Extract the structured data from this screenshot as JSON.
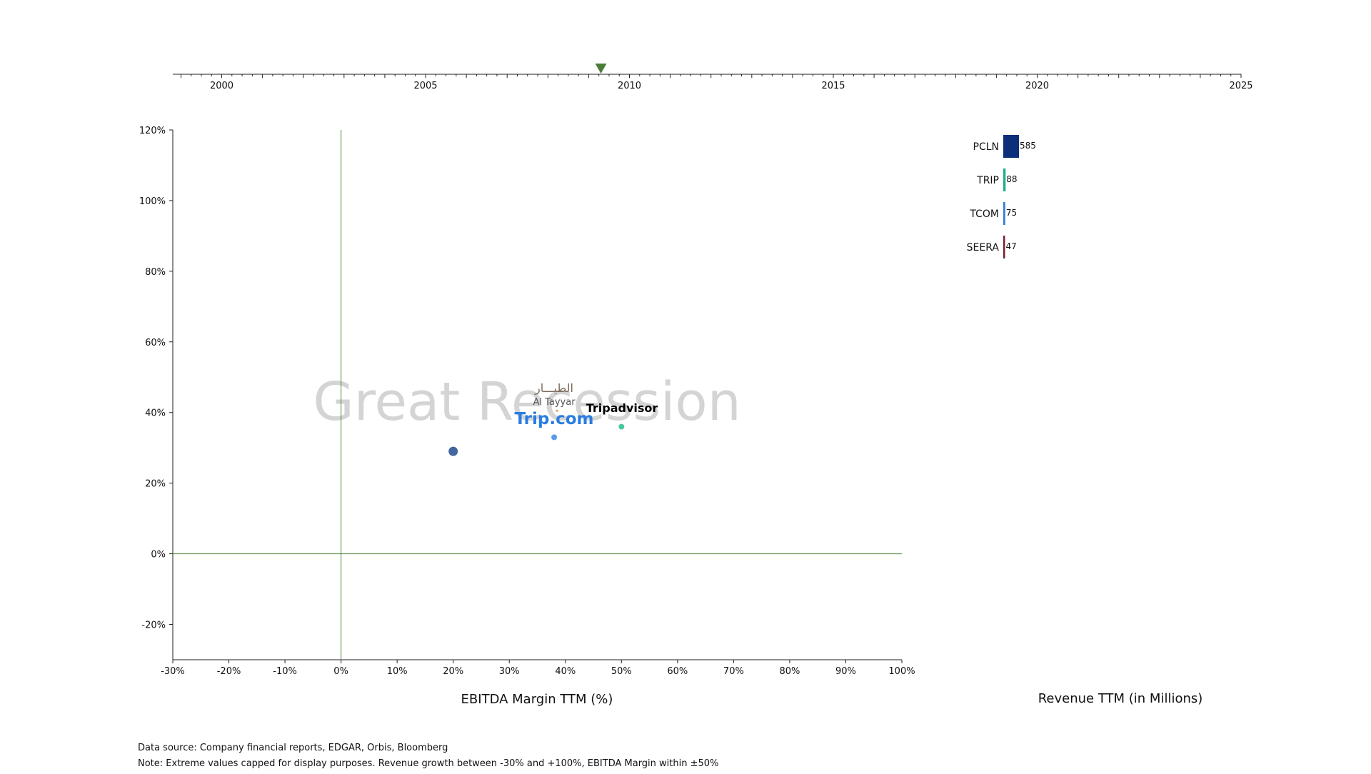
{
  "timeline": {
    "start_year": 1998.8,
    "end_year": 2025,
    "labeled_years": [
      2000,
      2005,
      2010,
      2015,
      2020,
      2025
    ],
    "current_year": 2009.3,
    "marker_color": "#4a7c3a"
  },
  "event_label": "Great Recession",
  "chart_data": {
    "type": "scatter",
    "xlabel": "EBITDA Margin TTM (%)",
    "ylabel": "",
    "xlim": [
      -30,
      100
    ],
    "ylim": [
      -30,
      120
    ],
    "x_ticks": [
      -30,
      -20,
      -10,
      0,
      10,
      20,
      30,
      40,
      50,
      60,
      70,
      80,
      90,
      100
    ],
    "y_ticks": [
      -20,
      0,
      20,
      40,
      60,
      80,
      100,
      120
    ],
    "tick_suffix": "%",
    "zero_line_color": "#4a8a3a",
    "points": [
      {
        "x": 20,
        "y": 29,
        "ticker": "PCLN",
        "color": "#2f5596",
        "r": 6.5,
        "logo": ""
      },
      {
        "x": 38,
        "y": 33,
        "ticker": "TCOM",
        "color": "#4a90e2",
        "r": 4,
        "logo": "Trip.com"
      },
      {
        "x": 50,
        "y": 36,
        "ticker": "TRIP",
        "color": "#34c38f",
        "r": 4,
        "logo": "Tripadvisor"
      },
      {
        "x": 38.5,
        "y": 40.5,
        "ticker": "SEERA",
        "color": "#e08a3c",
        "r": 1.5,
        "logo": "الطيـــار Al Tayyar"
      }
    ],
    "logo_texts": {
      "tcom": "Trip.com",
      "trip": "Tripadvisor",
      "altayyar_ar": "الطيـــار",
      "altayyar_en": "Al Tayyar"
    }
  },
  "bar_chart": {
    "type": "bar",
    "xlabel": "Revenue TTM (in Millions)",
    "categories": [
      "PCLN",
      "TRIP",
      "TCOM",
      "SEERA"
    ],
    "values": [
      585,
      88,
      75,
      47
    ],
    "colors": [
      "#0d2f7a",
      "#1fae8a",
      "#3a7fd6",
      "#7a1f2f"
    ]
  },
  "footnotes": {
    "source": "Data source: Company financial reports, EDGAR, Orbis, Bloomberg",
    "note": "Note: Extreme values capped for display purposes. Revenue growth between -30% and +100%, EBITDA Margin within ±50%"
  }
}
